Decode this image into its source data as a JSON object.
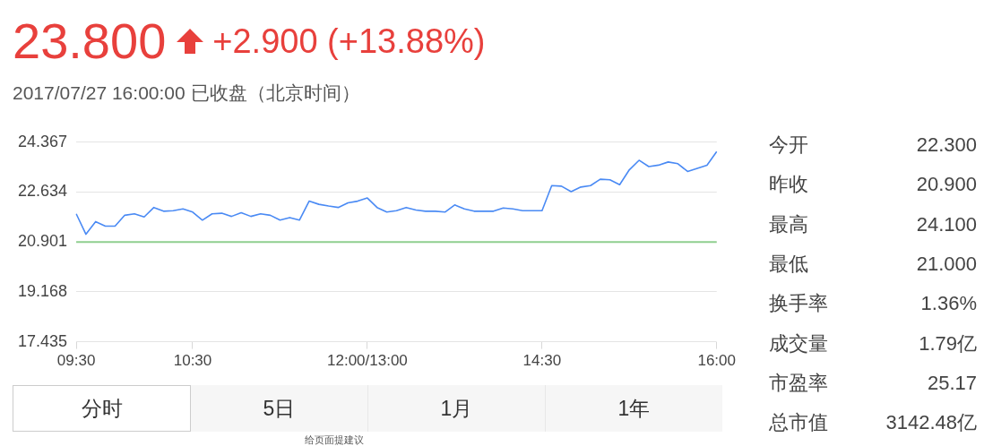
{
  "chart_data": {
    "type": "line",
    "title": "23.800",
    "subtitle": "2017/07/27 16:00:00 已收盘（北京时间）",
    "categories": [
      "09:30",
      null,
      null,
      null,
      null,
      null,
      null,
      null,
      null,
      null,
      null,
      null,
      "10:30",
      null,
      null,
      null,
      null,
      null,
      null,
      null,
      null,
      null,
      null,
      null,
      null,
      null,
      null,
      null,
      null,
      null,
      "12:00/13:00",
      null,
      null,
      null,
      null,
      null,
      null,
      null,
      null,
      null,
      null,
      null,
      null,
      null,
      null,
      null,
      null,
      null,
      "14:30",
      null,
      null,
      null,
      null,
      null,
      null,
      null,
      null,
      null,
      null,
      null,
      null,
      null,
      null,
      null,
      null,
      null,
      "16:00"
    ],
    "series": [
      {
        "color": "#4a8af4",
        "values": [
          21.88,
          21.17,
          21.61,
          21.45,
          21.45,
          21.83,
          21.88,
          21.77,
          22.1,
          21.97,
          21.99,
          22.05,
          21.94,
          21.66,
          21.88,
          21.9,
          21.79,
          21.92,
          21.79,
          21.88,
          21.83,
          21.66,
          21.75,
          21.66,
          22.32,
          22.21,
          22.15,
          22.1,
          22.26,
          22.32,
          22.43,
          22.1,
          21.94,
          21.99,
          22.1,
          22.01,
          21.97,
          21.97,
          21.94,
          22.19,
          22.05,
          21.97,
          21.97,
          21.97,
          22.08,
          22.05,
          21.99,
          21.99,
          21.99,
          22.86,
          22.84,
          22.65,
          22.81,
          22.86,
          23.08,
          23.06,
          22.89,
          23.41,
          23.74,
          23.52,
          23.57,
          23.68,
          23.62,
          23.35,
          23.46,
          23.57,
          24.04
        ]
      }
    ],
    "ylim": [
      17.435,
      24.367
    ],
    "yticks": [
      17.435,
      19.168,
      20.901,
      22.634,
      24.367
    ],
    "grid": "y",
    "marker": "none",
    "ref_lines": [
      {
        "axis": "y",
        "value": 20.9,
        "color": "#8fcf8f"
      }
    ],
    "annotations": [
      "+2.900 (+13.88%)",
      "今开",
      "22.300",
      "昨收",
      "20.900",
      "最高",
      "24.100",
      "最低",
      "21.000",
      "换手率",
      "1.36%",
      "成交量",
      "1.79亿",
      "市盈率",
      "25.17",
      "总市值",
      "3142.48亿",
      "分时",
      "5日",
      "1月",
      "1年",
      "给页面提建议"
    ]
  }
}
